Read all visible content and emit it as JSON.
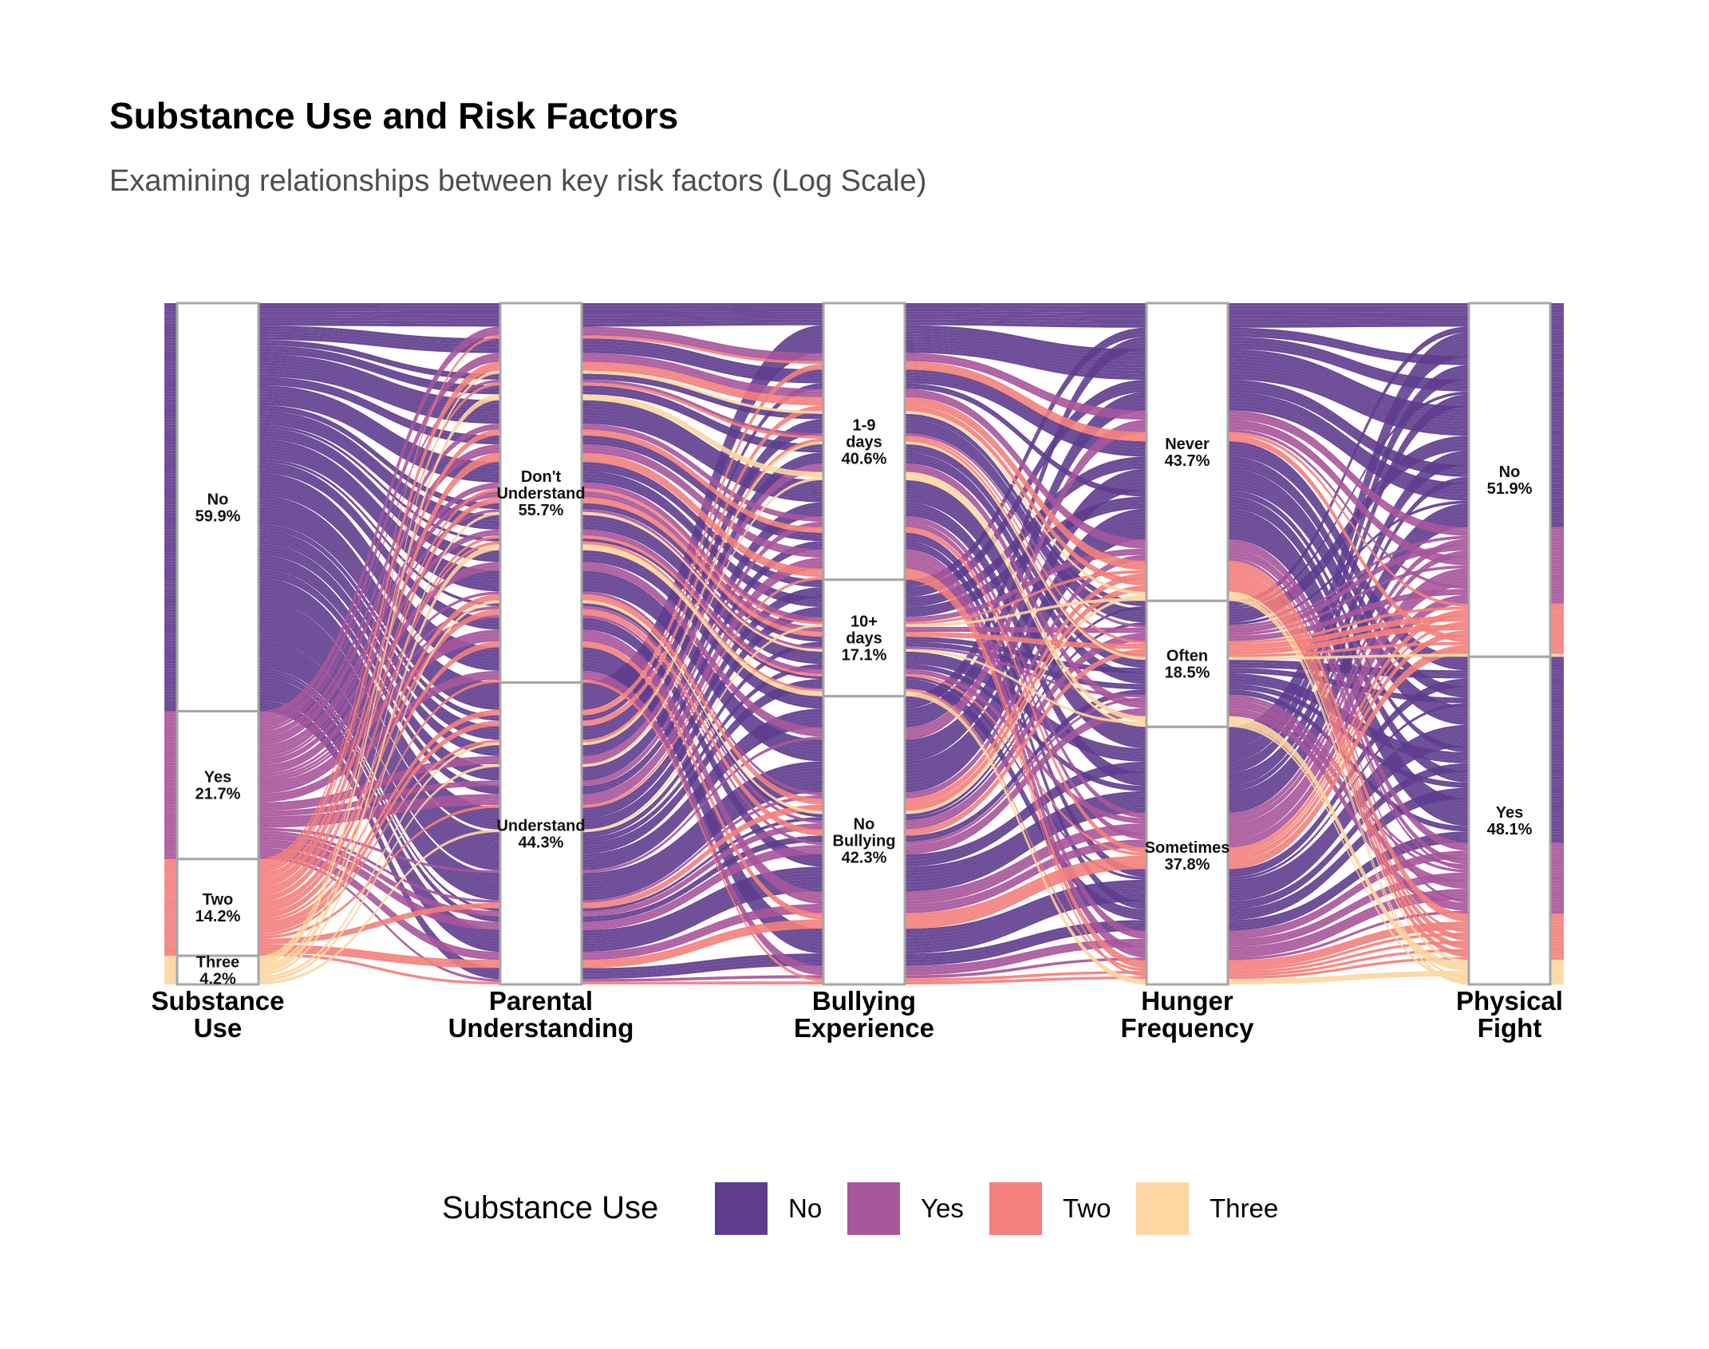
{
  "title": "Substance Use and Risk Factors",
  "subtitle": "Examining relationships between key risk factors (Log Scale)",
  "chart_data": {
    "type": "alluvial",
    "axes": [
      {
        "key": "substance",
        "label_lines": [
          "Substance",
          "Use"
        ],
        "strata": [
          {
            "name": "No",
            "lines": [
              "No",
              "59.9%"
            ],
            "pct": 59.9
          },
          {
            "name": "Yes",
            "lines": [
              "Yes",
              "21.7%"
            ],
            "pct": 21.7
          },
          {
            "name": "Two",
            "lines": [
              "Two",
              "14.2%"
            ],
            "pct": 14.2
          },
          {
            "name": "Three",
            "lines": [
              "Three",
              "4.2%"
            ],
            "pct": 4.2
          }
        ]
      },
      {
        "key": "parental",
        "label_lines": [
          "Parental",
          "Understanding"
        ],
        "strata": [
          {
            "name": "Don't Understand",
            "lines": [
              "Don't",
              "Understand",
              "55.7%"
            ],
            "pct": 55.7
          },
          {
            "name": "Understand",
            "lines": [
              "Understand",
              "44.3%"
            ],
            "pct": 44.3
          }
        ]
      },
      {
        "key": "bullying",
        "label_lines": [
          "Bullying",
          "Experience"
        ],
        "strata": [
          {
            "name": "1-9 days",
            "lines": [
              "1-9",
              "days",
              "40.6%"
            ],
            "pct": 40.6
          },
          {
            "name": "10+ days",
            "lines": [
              "10+",
              "days",
              "17.1%"
            ],
            "pct": 17.1
          },
          {
            "name": "No Bullying",
            "lines": [
              "No",
              "Bullying",
              "42.3%"
            ],
            "pct": 42.3
          }
        ]
      },
      {
        "key": "hunger",
        "label_lines": [
          "Hunger",
          "Frequency"
        ],
        "strata": [
          {
            "name": "Never",
            "lines": [
              "Never",
              "43.7%"
            ],
            "pct": 43.7
          },
          {
            "name": "Often",
            "lines": [
              "Often",
              "18.5%"
            ],
            "pct": 18.5
          },
          {
            "name": "Sometimes",
            "lines": [
              "Sometimes",
              "37.8%"
            ],
            "pct": 37.8
          }
        ]
      },
      {
        "key": "fight",
        "label_lines": [
          "Physical",
          "Fight"
        ],
        "strata": [
          {
            "name": "No",
            "lines": [
              "No",
              "51.9%"
            ],
            "pct": 51.9
          },
          {
            "name": "Yes",
            "lines": [
              "Yes",
              "48.1%"
            ],
            "pct": 48.1
          }
        ]
      }
    ],
    "fill_by": "Substance Use",
    "legend": {
      "title": "Substance Use",
      "position": "bottom",
      "entries": [
        {
          "label": "No",
          "color": "#5F3D8E"
        },
        {
          "label": "Yes",
          "color": "#A8569B"
        },
        {
          "label": "Two",
          "color": "#F3807C"
        },
        {
          "label": "Three",
          "color": "#FDD6A1"
        }
      ]
    }
  }
}
